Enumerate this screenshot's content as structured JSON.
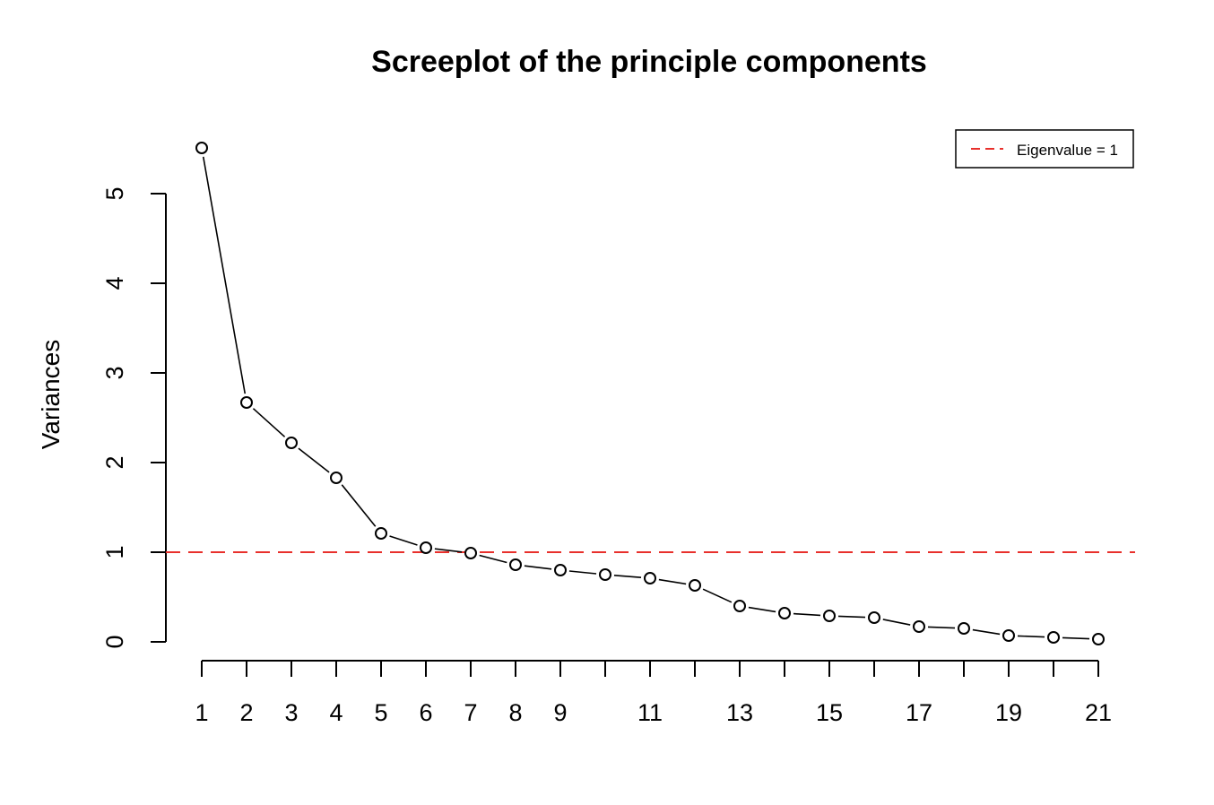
{
  "chart_data": {
    "type": "line",
    "title": "Screeplot of the principle components",
    "xlabel": "",
    "ylabel": "Variances",
    "x": [
      1,
      2,
      3,
      4,
      5,
      6,
      7,
      8,
      9,
      10,
      11,
      12,
      13,
      14,
      15,
      16,
      17,
      18,
      19,
      20,
      21
    ],
    "series": [
      {
        "values": [
          5.51,
          2.67,
          2.22,
          1.83,
          1.21,
          1.05,
          0.99,
          0.86,
          0.8,
          0.75,
          0.71,
          0.63,
          0.4,
          0.32,
          0.29,
          0.27,
          0.17,
          0.15,
          0.07,
          0.05,
          0.03
        ],
        "color": "#000000",
        "marker": "open-circle"
      }
    ],
    "x_tick_labels": [
      "1",
      "2",
      "3",
      "4",
      "5",
      "6",
      "7",
      "8",
      "9",
      "11",
      "13",
      "15",
      "17",
      "19",
      "21"
    ],
    "x_tick_label_positions": [
      1,
      2,
      3,
      4,
      5,
      6,
      7,
      8,
      9,
      11,
      13,
      15,
      17,
      19,
      21
    ],
    "x_ticks": [
      1,
      2,
      3,
      4,
      5,
      6,
      7,
      8,
      9,
      10,
      11,
      12,
      13,
      14,
      15,
      16,
      17,
      18,
      19,
      20,
      21
    ],
    "y_ticks": [
      0,
      1,
      2,
      3,
      4,
      5
    ],
    "y_tick_labels": [
      "0",
      "1",
      "2",
      "3",
      "4",
      "5"
    ],
    "ylim": [
      0,
      5.5
    ],
    "xlim": [
      1,
      21
    ],
    "reference_line": {
      "y": 1,
      "color": "#e8302c",
      "style": "dashed"
    },
    "legend": {
      "position": "top-right",
      "entries": [
        {
          "label": "Eigenvalue = 1",
          "color": "#e8302c",
          "style": "dashed"
        }
      ]
    },
    "grid": false
  }
}
